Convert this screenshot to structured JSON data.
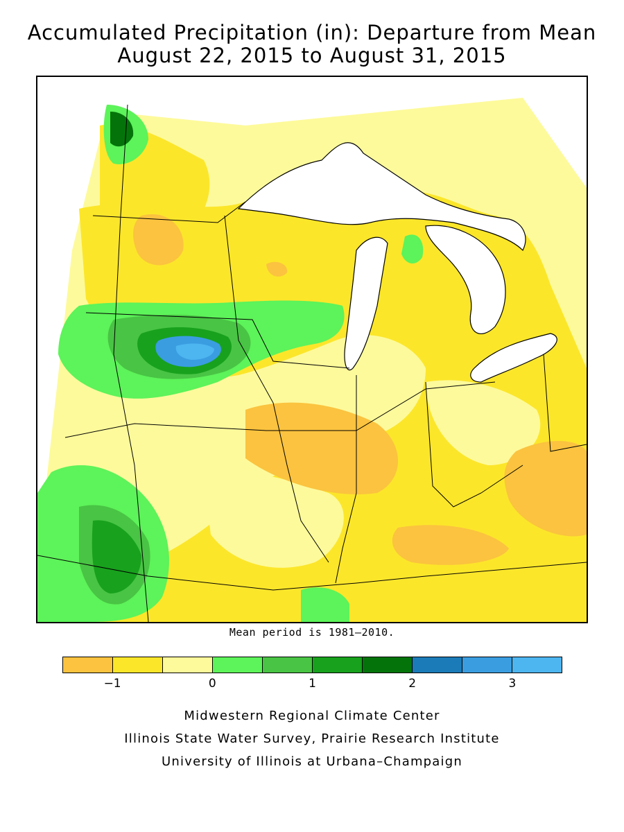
{
  "title_line1": "Accumulated Precipitation (in): Departure from Mean",
  "title_line2": "August 22, 2015 to August 31, 2015",
  "mean_note": "Mean period is 1981–2010.",
  "legend": {
    "colors": [
      "#fbc33f",
      "#fce62a",
      "#fdfa9b",
      "#5df35a",
      "#49c444",
      "#18a11d",
      "#04740a",
      "#1b7bb8",
      "#3a9de0",
      "#4db5f0"
    ],
    "ticks": [
      {
        "value": -1,
        "label": "−1"
      },
      {
        "value": 0,
        "label": "0"
      },
      {
        "value": 1,
        "label": "1"
      },
      {
        "value": 2,
        "label": "2"
      },
      {
        "value": 3,
        "label": "3"
      }
    ],
    "range": [
      -1.5,
      3.5
    ]
  },
  "credits": {
    "line1": "Midwestern Regional Climate Center",
    "line2": "Illinois State Water Survey, Prairie Research Institute",
    "line3": "University of Illinois at Urbana–Champaign"
  }
}
